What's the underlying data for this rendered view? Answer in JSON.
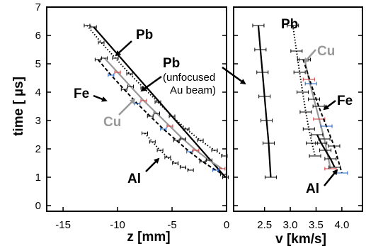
{
  "chart_data": [
    {
      "type": "line",
      "panel": "left",
      "xlabel": "z [mm]",
      "ylabel": "time [ µs]",
      "xlim": [
        -16.5,
        0
      ],
      "ylim": [
        -0.2,
        7
      ],
      "xticks": [
        "-15",
        "-10",
        "-5",
        "0"
      ],
      "xtick_values": [
        -15,
        -10,
        -5,
        0
      ],
      "yticks": [
        "0",
        "1",
        "2",
        "3",
        "4",
        "5",
        "6",
        "7"
      ],
      "grid": false,
      "series": [
        {
          "material": "Pb",
          "style": "dotted",
          "color": "#000000",
          "x": [
            -12.8,
            -11.5,
            -10.2,
            -8.9,
            -7.6,
            -6.3,
            -5.0,
            -3.7,
            -2.4,
            -1.1,
            -0.2
          ],
          "y": [
            6.35,
            5.75,
            5.2,
            4.65,
            4.15,
            3.65,
            3.15,
            2.7,
            2.3,
            1.95,
            1.75
          ]
        },
        {
          "material": "Pb (unfocused Au beam)",
          "style": "solid",
          "color": "#000000",
          "x": [
            -12.2,
            -0.1
          ],
          "y": [
            6.3,
            1.0
          ]
        },
        {
          "material": "Cu",
          "style": "solid",
          "color": "#999999",
          "x": [
            -11.2,
            -10.0,
            -8.8,
            -7.6,
            -6.4,
            -5.2,
            -4.0,
            -2.8,
            -1.6,
            -0.4
          ],
          "y": [
            5.2,
            4.7,
            4.2,
            3.7,
            3.25,
            2.8,
            2.35,
            1.95,
            1.6,
            1.3
          ]
        },
        {
          "material": "Fe",
          "style": "dashed",
          "color": "#000000",
          "x": [
            -11.8,
            -10.6,
            -9.4,
            -8.2,
            -7.0,
            -5.8,
            -4.6,
            -3.4,
            -2.2,
            -1.0,
            -0.3
          ],
          "y": [
            5.15,
            4.6,
            4.1,
            3.6,
            3.15,
            2.7,
            2.3,
            1.9,
            1.55,
            1.25,
            1.1
          ]
        },
        {
          "material": "Al",
          "style": "dotted",
          "color": "#000000",
          "x": [
            -7.5,
            -6.8,
            -6.1,
            -5.4,
            -4.7,
            -4.0,
            -3.3
          ],
          "y": [
            2.55,
            2.25,
            1.95,
            1.7,
            1.5,
            1.35,
            1.25
          ]
        }
      ],
      "annotations": [
        "Pb",
        "Pb",
        "(unfocused",
        "Au beam)",
        "Fe",
        "Cu",
        "Al"
      ]
    },
    {
      "type": "line",
      "panel": "right",
      "xlabel": "v [km/s]",
      "xlim": [
        1.9,
        4.4
      ],
      "ylim": [
        -0.2,
        7
      ],
      "xticks": [
        "2.5",
        "3.0",
        "3.5",
        "4.0"
      ],
      "xtick_values": [
        2.5,
        3.0,
        3.5,
        4.0
      ],
      "grid": false,
      "series": [
        {
          "material": "Pb (unfocused Au beam)",
          "style": "solid",
          "color": "#000000",
          "x": [
            2.38,
            2.42,
            2.46,
            2.5,
            2.54,
            2.58,
            2.62
          ],
          "y": [
            6.35,
            5.5,
            4.7,
            3.85,
            3.0,
            2.2,
            1.0
          ]
        },
        {
          "material": "Pb",
          "style": "dotted",
          "color": "#000000",
          "x": [
            3.05,
            3.12,
            3.18,
            3.24,
            3.3,
            3.36,
            3.42,
            3.48
          ],
          "y": [
            6.35,
            5.45,
            4.7,
            4.0,
            3.3,
            2.7,
            2.2,
            1.75
          ]
        },
        {
          "material": "Cu",
          "style": "solid",
          "color": "#999999",
          "x": [
            3.28,
            3.36,
            3.46,
            3.56,
            3.66,
            3.78
          ],
          "y": [
            5.15,
            4.45,
            3.75,
            3.05,
            2.35,
            1.3
          ]
        },
        {
          "material": "Fe",
          "style": "dashed",
          "color": "#000000",
          "x": [
            3.25,
            3.4,
            3.55,
            3.7,
            3.85,
            4.0
          ],
          "y": [
            5.15,
            4.3,
            3.5,
            2.8,
            2.1,
            1.15
          ]
        },
        {
          "material": "Al",
          "style": "solid",
          "color": "#000000",
          "x": [
            3.52,
            3.6,
            3.68,
            3.78,
            3.86
          ],
          "y": [
            2.5,
            2.2,
            1.95,
            1.65,
            1.35
          ]
        }
      ],
      "annotations": [
        "Pb",
        "Cu",
        "Fe",
        "Al"
      ]
    }
  ]
}
